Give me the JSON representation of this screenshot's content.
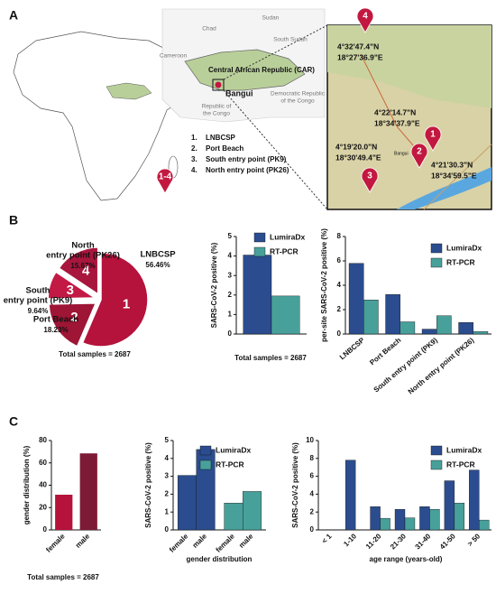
{
  "panels": [
    "A",
    "B",
    "C"
  ],
  "map": {
    "country_labels": [
      [
        "Chad"
      ],
      [
        "Sudan"
      ],
      [
        "South Sudan"
      ],
      [
        "Cameroon"
      ],
      [
        "Democratic Republic",
        "of the Congo"
      ],
      [
        "Republic of",
        "the Congo"
      ]
    ],
    "car_label": "Central African Republic (CAR)",
    "capital": "Bangui",
    "pin_all": "1-4",
    "sites": [
      {
        "number": "1.",
        "name": "LNBCSP",
        "pin": "1",
        "lat": "4°22'14.7\"N",
        "lon": "18°34'37.9\"E"
      },
      {
        "number": "2.",
        "name": "Port Beach",
        "pin": "2",
        "lat": "4°21'30.3\"N",
        "lon": "18°34'59.5\"E"
      },
      {
        "number": "3.",
        "name": "South entry point (PK9)",
        "pin": "3",
        "lat": "4°19'20.0\"N",
        "lon": "18°30'49.4\"E"
      },
      {
        "number": "4.",
        "name": "North entry point (PK26)",
        "pin": "4",
        "lat": "4°32'47.4\"N",
        "lon": "18°27'36.9\"E"
      }
    ]
  },
  "chart_data": [
    {
      "type": "pie",
      "categories": [
        [
          "LNBCSP"
        ],
        [
          "Port Beach"
        ],
        [
          "South",
          "entry point (PK9)"
        ],
        [
          "North",
          "entry point (PK26)"
        ]
      ],
      "values": [
        56.46,
        18.23,
        9.64,
        15.67
      ],
      "value_labels": [
        "56.46%",
        "18.23%",
        "9.64%",
        "15.67%"
      ],
      "slice_labels": [
        "1",
        "2",
        "3",
        "4"
      ],
      "colors": [
        "#b5123c",
        "#9e1535",
        "#c21a45",
        "#a8163d"
      ],
      "note": "Total samples = 2687"
    },
    {
      "type": "bar",
      "ylabel": "SARS-CoV-2 positive (%)",
      "xlabel": "Total  samples = 2687",
      "categories": [
        null
      ],
      "series": [
        {
          "name": "LumiraDx",
          "color": "#2b4d8f",
          "values": [
            4.05
          ]
        },
        {
          "name": "RT-PCR",
          "color": "#48a09a",
          "values": [
            1.95
          ]
        }
      ],
      "ylim": [
        0,
        5
      ],
      "yticks": [
        0,
        1,
        2,
        3,
        4,
        5
      ],
      "legend": "upper right"
    },
    {
      "type": "bar",
      "ylabel": "per-site SARS-CoV-2 positive (%)",
      "categories": [
        "LNBCSP",
        "Port Beach",
        "South entry point (PK9)",
        "North entry point (PK26)"
      ],
      "series": [
        {
          "name": "LumiraDx",
          "color": "#2b4d8f",
          "values": [
            5.8,
            3.25,
            0.4,
            0.95
          ]
        },
        {
          "name": "RT-PCR",
          "color": "#48a09a",
          "values": [
            2.8,
            1.0,
            1.5,
            0.2
          ]
        }
      ],
      "ylim": [
        0,
        8
      ],
      "yticks": [
        0,
        2,
        4,
        6,
        8
      ],
      "legend": "upper right"
    },
    {
      "type": "bar",
      "ylabel": "gender distribution (%)",
      "xlabel": "Total  samples = 2687",
      "categories": [
        "female",
        "male"
      ],
      "values": [
        31.5,
        68.5
      ],
      "colors": [
        "#b5123c",
        "#7d1a36"
      ],
      "ylim": [
        0,
        80
      ],
      "yticks": [
        0,
        20,
        40,
        60,
        80
      ]
    },
    {
      "type": "bar",
      "ylabel": "SARS-CoV-2 positive (%)",
      "xlabel": "gender distribution",
      "categories": [
        "female",
        "male"
      ],
      "cluster": "series",
      "series": [
        {
          "name": "LumiraDx",
          "color": "#2b4d8f",
          "values": [
            3.05,
            4.5
          ]
        },
        {
          "name": "RT-PCR",
          "color": "#48a09a",
          "values": [
            1.5,
            2.15
          ]
        }
      ],
      "ylim": [
        0,
        5
      ],
      "yticks": [
        0,
        1,
        2,
        3,
        4,
        5
      ],
      "legend": "upper right"
    },
    {
      "type": "bar",
      "ylabel": "SARS-CoV-2 positive (%)",
      "xlabel": "age range (years-old)",
      "categories": [
        "< 1",
        "1-10",
        "11-20",
        "21-30",
        "31-40",
        "41-50",
        "> 50"
      ],
      "series": [
        {
          "name": "LumiraDx",
          "color": "#2b4d8f",
          "values": [
            0,
            7.8,
            2.6,
            2.3,
            2.6,
            5.5,
            6.7
          ]
        },
        {
          "name": "RT-PCR",
          "color": "#48a09a",
          "values": [
            0,
            0,
            1.3,
            1.35,
            2.3,
            3.0,
            1.1
          ]
        }
      ],
      "ylim": [
        0,
        10
      ],
      "yticks": [
        0,
        2,
        4,
        6,
        8,
        10
      ],
      "legend": "upper right"
    }
  ]
}
